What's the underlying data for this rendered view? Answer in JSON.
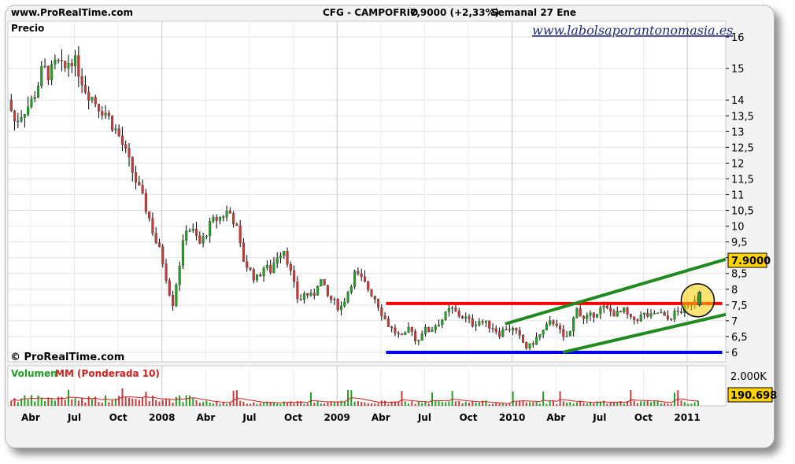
{
  "header": {
    "site_left": "www.ProRealTime.com",
    "instrument": "CFG - CAMPOFRIO",
    "quote": "7,9000 (+2,33%)",
    "period": "Semanal 27 Ene"
  },
  "watermark": "www.labolsaporantonomasia.es",
  "price_panel_label": "Precio",
  "copyright": "© ProRealTime.com",
  "volume_panel": {
    "label_volume": "Volumen",
    "label_ma": "MM (Ponderada 10)",
    "tick_2000": "2.000K",
    "current_value": "190.698"
  },
  "current_price_label": "7.9000",
  "colors": {
    "up": "#22a022",
    "down": "#c33b3b",
    "resistance": "#ff0000",
    "support": "#0000ee",
    "channel": "#208a20",
    "highlight": "#ffcc00"
  },
  "chart_data": {
    "type": "candlestick",
    "title": "CFG - CAMPOFRIO",
    "ylabel": "Precio",
    "ylim": [
      5.7,
      16.5
    ],
    "y_ticks": [
      "6",
      "6,5",
      "7",
      "7,5",
      "8",
      "8,5",
      "9",
      "9,5",
      "10",
      "10,5",
      "11",
      "11,5",
      "12",
      "12,5",
      "13",
      "13,5",
      "14",
      "15",
      "16"
    ],
    "y_tick_values": [
      6,
      6.5,
      7,
      7.5,
      8,
      8.5,
      9,
      9.5,
      10,
      10.5,
      11,
      11.5,
      12,
      12.5,
      13,
      13.5,
      14,
      15,
      16
    ],
    "x_ticks": [
      "Abr",
      "Jul",
      "Oct",
      "2008",
      "Abr",
      "Jul",
      "Oct",
      "2009",
      "Abr",
      "Jul",
      "Oct",
      "2010",
      "Abr",
      "Jul",
      "Oct",
      "2011"
    ],
    "x_tick_positions": [
      2007.25,
      2007.5,
      2007.75,
      2008.0,
      2008.25,
      2008.5,
      2008.75,
      2009.0,
      2009.25,
      2009.5,
      2009.75,
      2010.0,
      2010.25,
      2010.5,
      2010.75,
      2011.0
    ],
    "x_range": [
      2007.12,
      2011.22
    ],
    "close_path": [
      [
        2007.12,
        14.0
      ],
      [
        2007.16,
        13.3
      ],
      [
        2007.2,
        13.6
      ],
      [
        2007.25,
        13.9
      ],
      [
        2007.28,
        14.3
      ],
      [
        2007.32,
        15.0
      ],
      [
        2007.36,
        14.8
      ],
      [
        2007.4,
        15.2
      ],
      [
        2007.44,
        14.9
      ],
      [
        2007.48,
        15.4
      ],
      [
        2007.52,
        15.0
      ],
      [
        2007.56,
        14.4
      ],
      [
        2007.6,
        14.1
      ],
      [
        2007.64,
        13.8
      ],
      [
        2007.68,
        13.6
      ],
      [
        2007.72,
        13.2
      ],
      [
        2007.76,
        12.8
      ],
      [
        2007.8,
        12.2
      ],
      [
        2007.84,
        11.6
      ],
      [
        2007.88,
        11.0
      ],
      [
        2007.92,
        10.4
      ],
      [
        2007.96,
        9.6
      ],
      [
        2008.0,
        9.0
      ],
      [
        2008.04,
        8.0
      ],
      [
        2008.06,
        7.5
      ],
      [
        2008.1,
        8.8
      ],
      [
        2008.14,
        10.0
      ],
      [
        2008.18,
        9.8
      ],
      [
        2008.22,
        9.4
      ],
      [
        2008.26,
        9.9
      ],
      [
        2008.3,
        10.2
      ],
      [
        2008.34,
        10.3
      ],
      [
        2008.38,
        10.5
      ],
      [
        2008.42,
        10.1
      ],
      [
        2008.46,
        9.0
      ],
      [
        2008.5,
        8.6
      ],
      [
        2008.54,
        8.3
      ],
      [
        2008.58,
        8.7
      ],
      [
        2008.62,
        8.6
      ],
      [
        2008.66,
        9.1
      ],
      [
        2008.7,
        9.3
      ],
      [
        2008.74,
        8.4
      ],
      [
        2008.78,
        7.6
      ],
      [
        2008.82,
        7.9
      ],
      [
        2008.86,
        7.7
      ],
      [
        2008.9,
        8.4
      ],
      [
        2008.94,
        7.8
      ],
      [
        2008.98,
        7.6
      ],
      [
        2009.02,
        7.4
      ],
      [
        2009.06,
        7.9
      ],
      [
        2009.1,
        8.5
      ],
      [
        2009.14,
        8.3
      ],
      [
        2009.18,
        8.0
      ],
      [
        2009.22,
        7.7
      ],
      [
        2009.26,
        7.2
      ],
      [
        2009.3,
        6.8
      ],
      [
        2009.34,
        6.6
      ],
      [
        2009.38,
        6.4
      ],
      [
        2009.42,
        6.9
      ],
      [
        2009.45,
        6.3
      ],
      [
        2009.49,
        6.7
      ],
      [
        2009.53,
        6.7
      ],
      [
        2009.57,
        6.9
      ],
      [
        2009.61,
        7.1
      ],
      [
        2009.65,
        7.4
      ],
      [
        2009.69,
        7.2
      ],
      [
        2009.73,
        7.1
      ],
      [
        2009.77,
        6.9
      ],
      [
        2009.81,
        7.0
      ],
      [
        2009.85,
        6.9
      ],
      [
        2009.89,
        6.8
      ],
      [
        2009.93,
        6.6
      ],
      [
        2009.97,
        6.8
      ],
      [
        2010.01,
        6.7
      ],
      [
        2010.05,
        6.4
      ],
      [
        2010.09,
        6.1
      ],
      [
        2010.13,
        6.4
      ],
      [
        2010.17,
        6.6
      ],
      [
        2010.21,
        6.9
      ],
      [
        2010.25,
        7.0
      ],
      [
        2010.29,
        6.4
      ],
      [
        2010.33,
        6.6
      ],
      [
        2010.37,
        7.5
      ],
      [
        2010.4,
        7.0
      ],
      [
        2010.44,
        7.1
      ],
      [
        2010.48,
        7.3
      ],
      [
        2010.52,
        7.4
      ],
      [
        2010.56,
        7.3
      ],
      [
        2010.6,
        7.2
      ],
      [
        2010.64,
        7.3
      ],
      [
        2010.68,
        7.0
      ],
      [
        2010.72,
        7.1
      ],
      [
        2010.76,
        7.2
      ],
      [
        2010.8,
        7.1
      ],
      [
        2010.84,
        7.3
      ],
      [
        2010.88,
        7.0
      ],
      [
        2010.92,
        7.2
      ],
      [
        2010.96,
        7.3
      ],
      [
        2011.0,
        7.4
      ],
      [
        2011.04,
        7.72
      ],
      [
        2011.07,
        7.9
      ]
    ],
    "annotations": {
      "resistance": {
        "y": 7.55,
        "x_start": 2009.28,
        "x_end": 2011.2
      },
      "support": {
        "y": 6.0,
        "x_start": 2009.28,
        "x_end": 2011.2
      },
      "channel_upper": {
        "x1": 2009.96,
        "y1": 6.9,
        "x2": 2011.22,
        "y2": 8.95
      },
      "channel_lower": {
        "x1": 2010.29,
        "y1": 6.0,
        "x2": 2011.22,
        "y2": 7.2
      },
      "highlight_circle": {
        "x": 2011.06,
        "y": 7.65
      }
    },
    "volume": {
      "unit": "K",
      "ylim": [
        0,
        2600
      ],
      "ticks": [
        2000
      ],
      "last": 190.698
    }
  }
}
